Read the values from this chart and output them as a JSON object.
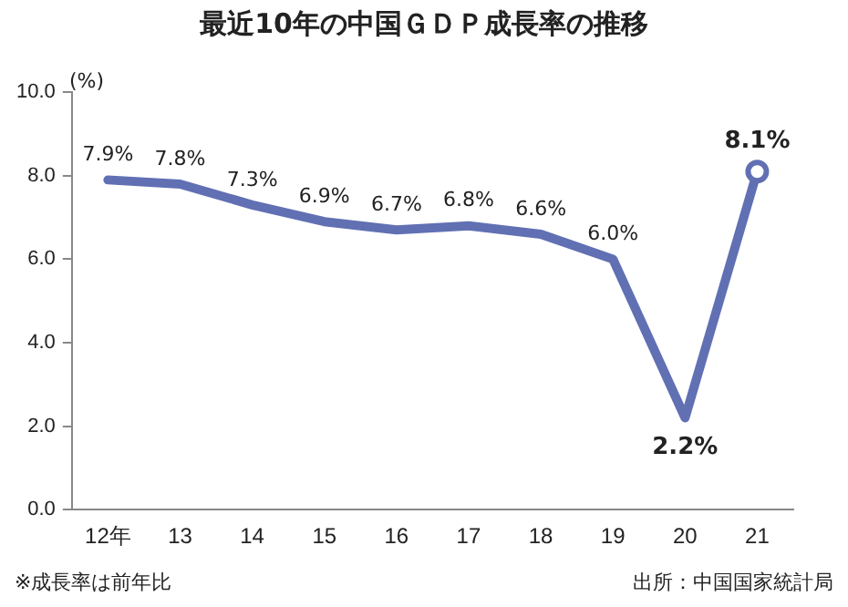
{
  "chart_data": {
    "type": "line",
    "title": "最近10年の中国ＧＤＰ成長率の推移",
    "ylabel": "(%)",
    "categories": [
      "12年",
      "13",
      "14",
      "15",
      "16",
      "17",
      "18",
      "19",
      "20",
      "21"
    ],
    "series": [
      {
        "color": "#6170b3",
        "values": [
          7.9,
          7.8,
          7.3,
          6.9,
          6.7,
          6.8,
          6.6,
          6.0,
          2.2,
          8.1
        ],
        "value_labels": [
          "7.9%",
          "7.8%",
          "7.3%",
          "6.9%",
          "6.7%",
          "6.8%",
          "6.6%",
          "6.0%",
          "2.2%",
          "8.1%"
        ]
      }
    ],
    "ylim": [
      0,
      10
    ],
    "yticks": [
      {
        "value": 0,
        "label": "0.0"
      },
      {
        "value": 2,
        "label": "2.0"
      },
      {
        "value": 4,
        "label": "4.0"
      },
      {
        "value": 6,
        "label": "6.0"
      },
      {
        "value": 8,
        "label": "8.0"
      },
      {
        "value": 10,
        "label": "10.0"
      }
    ],
    "grid": false,
    "legend": false,
    "line_style": "solid",
    "annotations": [
      "※成長率は前年比",
      "出所：中国国家統計局"
    ]
  }
}
